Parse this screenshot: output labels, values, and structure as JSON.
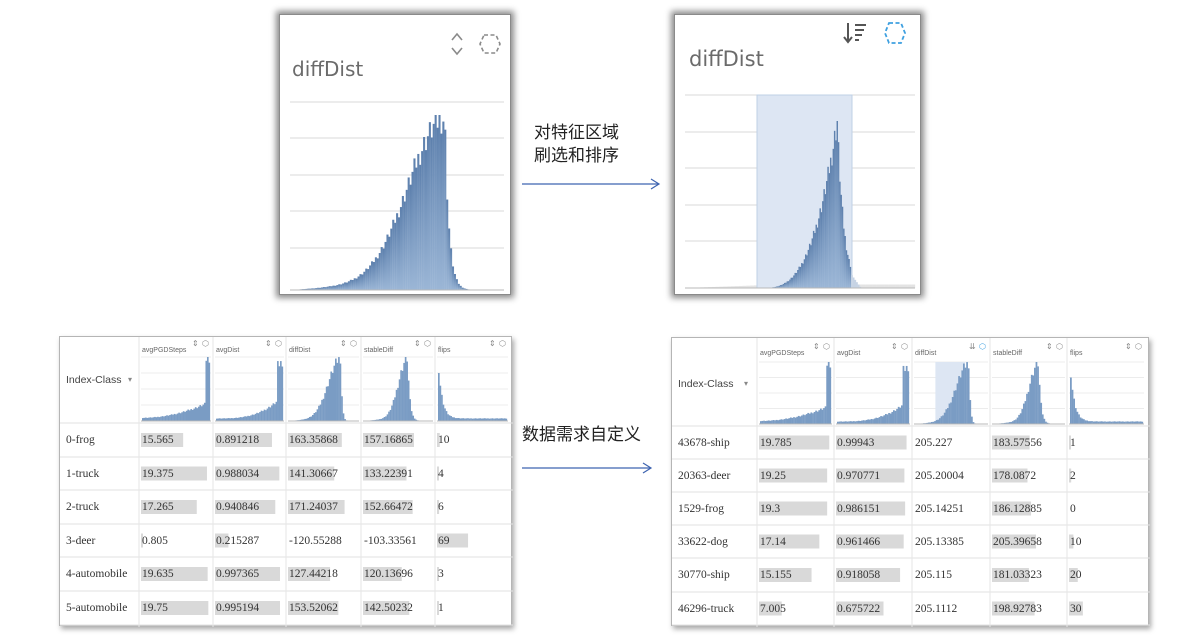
{
  "zoom_before": {
    "title": "diffDist"
  },
  "zoom_after": {
    "title": "diffDist"
  },
  "caption_top": [
    "对特征区域",
    "刷选和排序"
  ],
  "caption_bottom": "数据需求自定义",
  "table_before": {
    "index_header": "Index-Class",
    "columns": [
      "avgPGDSteps",
      "avgDist",
      "diffDist",
      "stableDiff",
      "flips"
    ],
    "rows": [
      {
        "index": "0-frog",
        "values": [
          "15.565",
          "0.891218",
          "163.35868",
          "157.16865",
          "10"
        ],
        "bars": [
          0.62,
          0.85,
          0.78,
          0.75,
          0.04
        ]
      },
      {
        "index": "1-truck",
        "values": [
          "19.375",
          "0.988034",
          "141.30667",
          "133.22391",
          "4"
        ],
        "bars": [
          0.97,
          0.96,
          0.67,
          0.64,
          0.02
        ]
      },
      {
        "index": "2-truck",
        "values": [
          "17.265",
          "0.940846",
          "171.24037",
          "152.66472",
          "6"
        ],
        "bars": [
          0.82,
          0.9,
          0.82,
          0.73,
          0.03
        ]
      },
      {
        "index": "3-deer",
        "values": [
          "0.805",
          "0.215287",
          "-120.55288",
          "-103.33561",
          "69"
        ],
        "bars": [
          0.02,
          0.2,
          0.0,
          0.0,
          0.45
        ]
      },
      {
        "index": "4-automobile",
        "values": [
          "19.635",
          "0.997365",
          "127.44218",
          "120.13696",
          "3"
        ],
        "bars": [
          0.98,
          0.97,
          0.61,
          0.57,
          0.02
        ]
      },
      {
        "index": "5-automobile",
        "values": [
          "19.75",
          "0.995194",
          "153.52062",
          "142.50232",
          "1"
        ],
        "bars": [
          0.99,
          0.97,
          0.73,
          0.68,
          0.01
        ]
      }
    ]
  },
  "table_after": {
    "index_header": "Index-Class",
    "columns": [
      "avgPGDSteps",
      "avgDist",
      "diffDist",
      "stableDiff",
      "flips"
    ],
    "rows": [
      {
        "index": "43678-ship",
        "values": [
          "19.785",
          "0.99943",
          "205.227",
          "183.57556",
          "1"
        ],
        "bars": [
          0.99,
          0.98,
          0.0,
          0.53,
          0.02
        ]
      },
      {
        "index": "20363-deer",
        "values": [
          "19.25",
          "0.970771",
          "205.20004",
          "178.0872",
          "2"
        ],
        "bars": [
          0.96,
          0.95,
          0.0,
          0.5,
          0.03
        ]
      },
      {
        "index": "1529-frog",
        "values": [
          "19.3",
          "0.986151",
          "205.14251",
          "186.12885",
          "0"
        ],
        "bars": [
          0.96,
          0.96,
          0.0,
          0.55,
          0.0
        ]
      },
      {
        "index": "33622-dog",
        "values": [
          "17.14",
          "0.961466",
          "205.13385",
          "205.39658",
          "10"
        ],
        "bars": [
          0.85,
          0.94,
          0.0,
          0.62,
          0.06
        ]
      },
      {
        "index": "30770-ship",
        "values": [
          "15.155",
          "0.918058",
          "205.115",
          "181.03323",
          "20"
        ],
        "bars": [
          0.74,
          0.89,
          0.0,
          0.52,
          0.12
        ]
      },
      {
        "index": "46296-truck",
        "values": [
          "7.005",
          "0.675722",
          "205.1112",
          "198.92783",
          "30"
        ],
        "bars": [
          0.32,
          0.66,
          0.0,
          0.6,
          0.19
        ]
      }
    ]
  },
  "icons": {
    "sort": "up-down-sort-icon",
    "brush": "brush-select-icon",
    "sorted": "sorted-desc-icon"
  },
  "colors": {
    "hist_fill": "#7a9cc4",
    "hist_dark": "#4f74a3",
    "brush": "#dde6f3",
    "brush_active": "#3fa0e0",
    "bar_bg": "#d9d9d9",
    "arrow": "#3d63b0"
  }
}
